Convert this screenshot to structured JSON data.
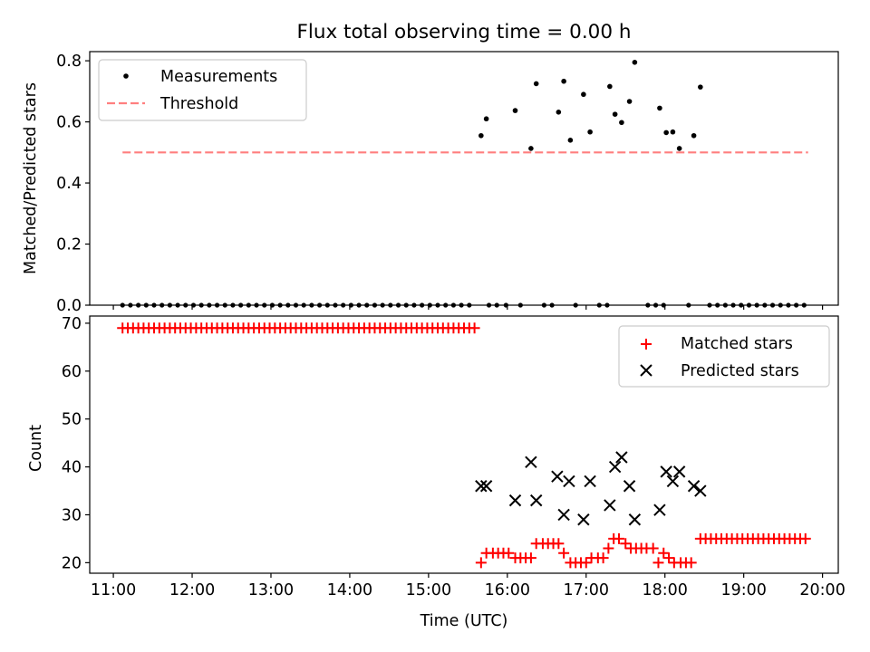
{
  "figure": {
    "title": "Flux total observing time = 0.00 h"
  },
  "colors": {
    "measurements": "#000000",
    "threshold": "#ff7f7f",
    "matched": "#ff0000",
    "predicted": "#000000"
  },
  "chart_data": [
    {
      "type": "scatter",
      "title": "Flux total observing time = 0.00 h",
      "xlabel": "",
      "ylabel": "Matched/Predicted stars",
      "xlim_hours": [
        10.7,
        20.2
      ],
      "ylim": [
        0,
        0.83
      ],
      "yticks": [
        0.0,
        0.2,
        0.4,
        0.6,
        0.8
      ],
      "ytick_labels": [
        "0.0",
        "0.2",
        "0.4",
        "0.6",
        "0.8"
      ],
      "legend_position": "top-left",
      "threshold": {
        "name": "Threshold",
        "value": 0.5,
        "x_start": "11:07",
        "x_end": "19:49",
        "style": "dashed"
      },
      "zero_runs": [
        {
          "start": "11:07",
          "end": "15:35",
          "step_minutes": 6
        },
        {
          "start": "16:52",
          "end": "16:52",
          "step_minutes": 6
        },
        {
          "start": "18:34",
          "end": "19:49",
          "step_minutes": 6
        }
      ],
      "zero_extra_times": [
        "15:46",
        "15:52",
        "15:59",
        "16:10",
        "16:28",
        "16:34",
        "17:10",
        "17:16",
        "17:47",
        "17:53",
        "17:59",
        "18:18"
      ],
      "series": [
        {
          "name": "Measurements",
          "points": [
            {
              "x": "15:40",
              "y": 0.555
            },
            {
              "x": "15:44",
              "y": 0.61
            },
            {
              "x": "16:06",
              "y": 0.637
            },
            {
              "x": "16:18",
              "y": 0.513
            },
            {
              "x": "16:22",
              "y": 0.725
            },
            {
              "x": "16:39",
              "y": 0.632
            },
            {
              "x": "16:43",
              "y": 0.733
            },
            {
              "x": "16:48",
              "y": 0.54
            },
            {
              "x": "16:58",
              "y": 0.69
            },
            {
              "x": "17:03",
              "y": 0.567
            },
            {
              "x": "17:18",
              "y": 0.716
            },
            {
              "x": "17:22",
              "y": 0.625
            },
            {
              "x": "17:27",
              "y": 0.598
            },
            {
              "x": "17:33",
              "y": 0.667
            },
            {
              "x": "17:37",
              "y": 0.795
            },
            {
              "x": "17:56",
              "y": 0.645
            },
            {
              "x": "18:01",
              "y": 0.565
            },
            {
              "x": "18:06",
              "y": 0.567
            },
            {
              "x": "18:11",
              "y": 0.513
            },
            {
              "x": "18:22",
              "y": 0.555
            },
            {
              "x": "18:27",
              "y": 0.714
            }
          ]
        }
      ]
    },
    {
      "type": "scatter",
      "title": "",
      "xlabel": "Time (UTC)",
      "ylabel": "Count",
      "xlim_hours": [
        10.7,
        20.2
      ],
      "ylim": [
        17.8,
        71.5
      ],
      "yticks": [
        20,
        30,
        40,
        50,
        60,
        70
      ],
      "ytick_labels": [
        "20",
        "30",
        "40",
        "50",
        "60",
        "70"
      ],
      "xticks": [
        "11:00",
        "12:00",
        "13:00",
        "14:00",
        "15:00",
        "16:00",
        "17:00",
        "18:00",
        "19:00",
        "20:00"
      ],
      "legend_position": "top-right",
      "series": [
        {
          "name": "Matched stars",
          "marker": "plus",
          "runs": [
            {
              "start": "11:07",
              "end": "15:35",
              "step_minutes": 4,
              "y": 69
            },
            {
              "start": "18:27",
              "end": "19:49",
              "step_minutes": 4,
              "y": 25
            }
          ],
          "points": [
            {
              "x": "15:40",
              "y": 20
            },
            {
              "x": "15:44",
              "y": 22
            },
            {
              "x": "15:49",
              "y": 22
            },
            {
              "x": "15:53",
              "y": 22
            },
            {
              "x": "15:57",
              "y": 22
            },
            {
              "x": "16:01",
              "y": 22
            },
            {
              "x": "16:06",
              "y": 21
            },
            {
              "x": "16:10",
              "y": 21
            },
            {
              "x": "16:14",
              "y": 21
            },
            {
              "x": "16:18",
              "y": 21
            },
            {
              "x": "16:22",
              "y": 24
            },
            {
              "x": "16:27",
              "y": 24
            },
            {
              "x": "16:31",
              "y": 24
            },
            {
              "x": "16:35",
              "y": 24
            },
            {
              "x": "16:39",
              "y": 24
            },
            {
              "x": "16:43",
              "y": 22
            },
            {
              "x": "16:48",
              "y": 20
            },
            {
              "x": "16:52",
              "y": 20
            },
            {
              "x": "16:56",
              "y": 20
            },
            {
              "x": "17:00",
              "y": 20
            },
            {
              "x": "17:04",
              "y": 21
            },
            {
              "x": "17:09",
              "y": 21
            },
            {
              "x": "17:13",
              "y": 21
            },
            {
              "x": "17:17",
              "y": 23
            },
            {
              "x": "17:21",
              "y": 25
            },
            {
              "x": "17:25",
              "y": 25
            },
            {
              "x": "17:30",
              "y": 24
            },
            {
              "x": "17:34",
              "y": 23
            },
            {
              "x": "17:38",
              "y": 23
            },
            {
              "x": "17:42",
              "y": 23
            },
            {
              "x": "17:46",
              "y": 23
            },
            {
              "x": "17:51",
              "y": 23
            },
            {
              "x": "17:55",
              "y": 20
            },
            {
              "x": "17:59",
              "y": 22
            },
            {
              "x": "18:03",
              "y": 21
            },
            {
              "x": "18:07",
              "y": 20
            },
            {
              "x": "18:12",
              "y": 20
            },
            {
              "x": "18:16",
              "y": 20
            },
            {
              "x": "18:20",
              "y": 20
            }
          ]
        },
        {
          "name": "Predicted stars",
          "marker": "x",
          "points": [
            {
              "x": "15:40",
              "y": 36
            },
            {
              "x": "15:44",
              "y": 36
            },
            {
              "x": "16:06",
              "y": 33
            },
            {
              "x": "16:18",
              "y": 41
            },
            {
              "x": "16:22",
              "y": 33
            },
            {
              "x": "16:38",
              "y": 38
            },
            {
              "x": "16:43",
              "y": 30
            },
            {
              "x": "16:47",
              "y": 37
            },
            {
              "x": "16:58",
              "y": 29
            },
            {
              "x": "17:03",
              "y": 37
            },
            {
              "x": "17:18",
              "y": 32
            },
            {
              "x": "17:22",
              "y": 40
            },
            {
              "x": "17:27",
              "y": 42
            },
            {
              "x": "17:33",
              "y": 36
            },
            {
              "x": "17:37",
              "y": 29
            },
            {
              "x": "17:56",
              "y": 31
            },
            {
              "x": "18:01",
              "y": 39
            },
            {
              "x": "18:06",
              "y": 37
            },
            {
              "x": "18:11",
              "y": 39
            },
            {
              "x": "18:22",
              "y": 36
            },
            {
              "x": "18:27",
              "y": 35
            }
          ]
        }
      ]
    }
  ]
}
